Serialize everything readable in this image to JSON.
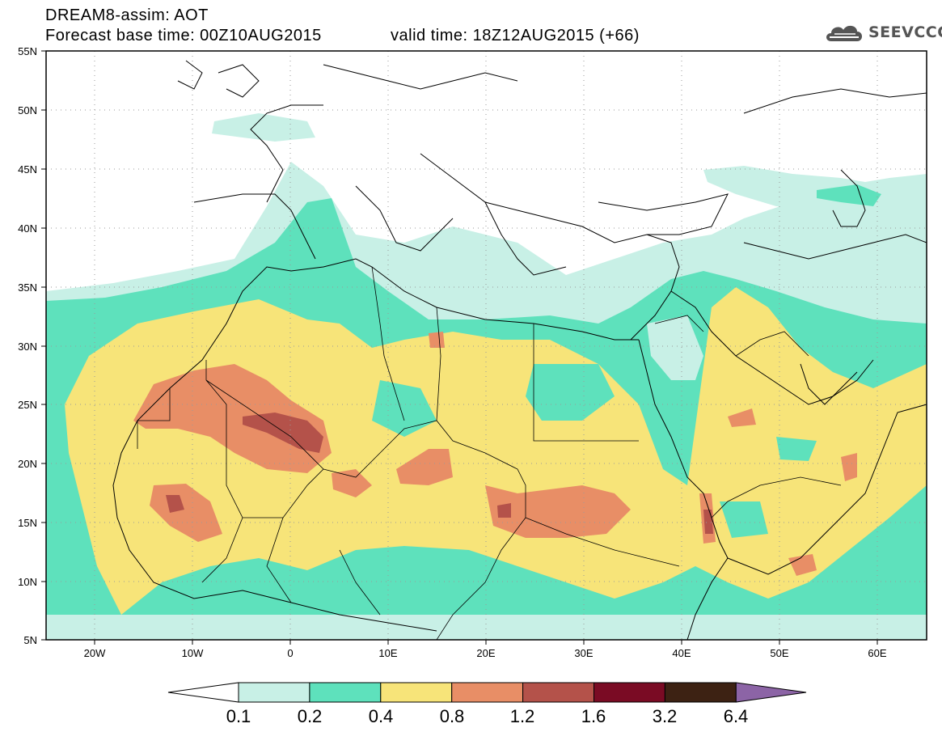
{
  "header": {
    "line1": "DREAM8-assim: AOT",
    "line2": "Forecast base time: 00Z10AUG2015",
    "line3": "valid time: 18Z12AUG2015 (+66)",
    "logo_text": "SEEVCCC"
  },
  "map": {
    "lon_range": [
      -25,
      65
    ],
    "lat_range": [
      5,
      55
    ],
    "lat_ticks": [
      "55N",
      "50N",
      "45N",
      "40N",
      "35N",
      "30N",
      "25N",
      "20N",
      "15N",
      "10N",
      "5N"
    ],
    "lon_ticks": [
      "20W",
      "10W",
      "0",
      "10E",
      "20E",
      "30E",
      "40E",
      "50E",
      "60E"
    ],
    "variable": "Aerosol Optical Thickness"
  },
  "colorbar": {
    "labels": [
      "0.1",
      "0.2",
      "0.4",
      "0.8",
      "1.2",
      "1.6",
      "3.2",
      "6.4"
    ],
    "colors": [
      "#ffffff",
      "#c8f0e6",
      "#5ee1bc",
      "#f7e479",
      "#e88e66",
      "#b4524a",
      "#7a0b24",
      "#3d2213",
      "#8c64a6"
    ]
  }
}
